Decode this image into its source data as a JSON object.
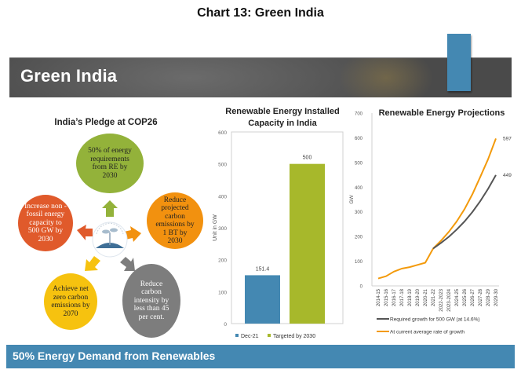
{
  "page_title": "Chart 13: Green India",
  "banner": {
    "title": "Green India"
  },
  "footer": {
    "text": "50% Energy Demand from Renewables"
  },
  "colors": {
    "accent_blue": "#4488b2",
    "bar_green": "#a7b82b",
    "orange": "#f39a0b",
    "gray": "#555555"
  },
  "pledge": {
    "title": "India’s Pledge at COP26",
    "center_icon": "sapling-icon",
    "items": [
      {
        "text": "50% of energy requirements from RE by 2030",
        "color": "#93b23a",
        "text_color": "#222222",
        "arrow": "arrow-up-icon"
      },
      {
        "text": "Reduce projected carbon emissions by 1 BT by 2030",
        "color": "#f2910f",
        "text_color": "#222222",
        "arrow": "arrow-right-icon"
      },
      {
        "text": "Reduce carbon intensity by less than 45 per cent.",
        "color": "#7d7d7d",
        "text_color": "#ffffff",
        "arrow": "arrow-down-right-icon"
      },
      {
        "text": "Achieve net zero carbon emissions by 2070",
        "color": "#f6c20f",
        "text_color": "#222222",
        "arrow": "arrow-down-left-icon"
      },
      {
        "text": "Increase non - fossil energy capacity to 500 GW by 2030",
        "color": "#e05a2b",
        "text_color": "#ffffff",
        "arrow": "arrow-left-icon"
      }
    ]
  },
  "chart_data": [
    {
      "type": "bar",
      "title": "Renewable Energy Installed Capacity in India",
      "ylabel": "Unit in GW",
      "xlabel": "",
      "ylim": [
        0,
        600
      ],
      "yticks": [
        0,
        100,
        200,
        300,
        400,
        500,
        600
      ],
      "series": [
        {
          "name": "Dec-21",
          "value": 151.4,
          "label": "151.4",
          "color": "#4488b2"
        },
        {
          "name": "Targeted by 2030",
          "value": 500,
          "label": "500",
          "color": "#a7b82b"
        }
      ],
      "legend": "bottom",
      "grid": false
    },
    {
      "type": "line",
      "title": "Renewable Energy Projections",
      "ylabel": "GW",
      "xlabel": "",
      "ylim": [
        0,
        700
      ],
      "yticks": [
        0,
        100,
        200,
        300,
        400,
        500,
        600,
        700
      ],
      "x": [
        "2014-15",
        "2015-16",
        "2016-17",
        "2017-18",
        "2018-19",
        "2019-20",
        "2020-21",
        "2021-22",
        "2022-2023",
        "2023-2024",
        "2024-25",
        "2025-26",
        "2026-27",
        "2027-28",
        "2028-29",
        "2029-30"
      ],
      "series": [
        {
          "name": "Required growth for 500 GW (at 14.6%)",
          "color": "#555555",
          "values": [
            null,
            null,
            null,
            null,
            null,
            null,
            null,
            151,
            174,
            199,
            228,
            261,
            299,
            343,
            393,
            449
          ],
          "end_label": "449"
        },
        {
          "name": "At current average rate of growth",
          "color": "#f39a0b",
          "values": [
            30,
            39,
            58,
            70,
            76,
            85,
            94,
            151,
            183,
            219,
            261,
            311,
            371,
            441,
            513,
            597
          ],
          "end_label": "597"
        }
      ],
      "legend": "bottom",
      "grid": false
    }
  ]
}
